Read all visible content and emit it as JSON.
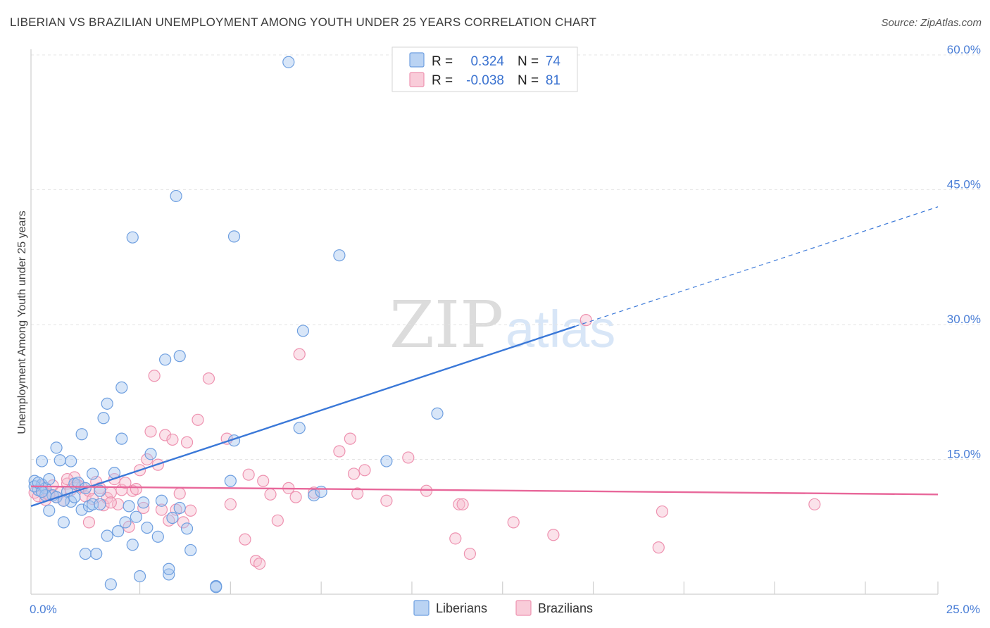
{
  "header": {
    "title": "LIBERIAN VS BRAZILIAN UNEMPLOYMENT AMONG YOUTH UNDER 25 YEARS CORRELATION CHART",
    "source": "Source: ZipAtlas.com"
  },
  "watermark": {
    "zip": "ZIP",
    "atlas": "atlas"
  },
  "chart_data": {
    "type": "scatter",
    "title": "LIBERIAN VS BRAZILIAN UNEMPLOYMENT AMONG YOUTH UNDER 25 YEARS CORRELATION CHART",
    "xlabel": "",
    "ylabel": "Unemployment Among Youth under 25 years",
    "xlim": [
      0,
      25
    ],
    "ylim": [
      0,
      60
    ],
    "x_tick_labels": [
      "0.0%",
      "25.0%"
    ],
    "y_ticks": [
      15,
      30,
      45,
      60
    ],
    "y_tick_labels": [
      "15.0%",
      "30.0%",
      "45.0%",
      "60.0%"
    ],
    "legend": {
      "r_label": "R =",
      "n_label": "N =",
      "entries": [
        {
          "name": "Liberians",
          "r": "0.324",
          "n": "74"
        },
        {
          "name": "Brazilians",
          "r": "-0.038",
          "n": "81"
        }
      ]
    },
    "colors": {
      "liberians_fill": "#a9c8f0",
      "liberians_stroke": "#6e9fe0",
      "liberians_line": "#3a78d8",
      "brazilians_fill": "#f7bfd0",
      "brazilians_stroke": "#ee92b0",
      "brazilians_line": "#e8679a"
    },
    "series": [
      {
        "name": "Liberians",
        "trend": {
          "x0": 0,
          "y0": 9.8,
          "x1": 15,
          "y1": 29.8,
          "dash_to_x": 25,
          "dash_to_y": 43.1
        },
        "points": [
          [
            0.1,
            12.6
          ],
          [
            0.2,
            11.6
          ],
          [
            0.3,
            12.2
          ],
          [
            0.3,
            14.8
          ],
          [
            0.4,
            11.8
          ],
          [
            0.5,
            9.3
          ],
          [
            0.5,
            12.8
          ],
          [
            0.6,
            11.0
          ],
          [
            0.7,
            10.8
          ],
          [
            0.7,
            16.3
          ],
          [
            0.8,
            14.9
          ],
          [
            0.9,
            8.0
          ],
          [
            1.0,
            11.4
          ],
          [
            1.1,
            10.3
          ],
          [
            1.1,
            14.8
          ],
          [
            1.2,
            12.3
          ],
          [
            1.3,
            12.4
          ],
          [
            1.4,
            9.4
          ],
          [
            1.4,
            17.8
          ],
          [
            1.5,
            11.8
          ],
          [
            1.5,
            4.5
          ],
          [
            1.6,
            9.8
          ],
          [
            1.7,
            10.0
          ],
          [
            1.7,
            13.4
          ],
          [
            1.8,
            4.5
          ],
          [
            1.9,
            10.0
          ],
          [
            1.9,
            11.5
          ],
          [
            2.0,
            19.6
          ],
          [
            2.1,
            6.5
          ],
          [
            2.1,
            21.2
          ],
          [
            2.2,
            1.1
          ],
          [
            2.3,
            13.5
          ],
          [
            2.4,
            7.0
          ],
          [
            2.5,
            23.0
          ],
          [
            2.5,
            17.3
          ],
          [
            2.6,
            8.0
          ],
          [
            2.7,
            9.8
          ],
          [
            2.8,
            5.5
          ],
          [
            2.8,
            39.7
          ],
          [
            2.9,
            8.6
          ],
          [
            3.0,
            2.0
          ],
          [
            3.1,
            10.2
          ],
          [
            3.2,
            7.4
          ],
          [
            3.3,
            15.6
          ],
          [
            3.5,
            6.4
          ],
          [
            3.6,
            10.4
          ],
          [
            3.7,
            26.1
          ],
          [
            3.8,
            2.2
          ],
          [
            3.8,
            2.8
          ],
          [
            3.9,
            8.5
          ],
          [
            4.0,
            44.3
          ],
          [
            4.1,
            26.5
          ],
          [
            4.1,
            9.6
          ],
          [
            4.3,
            7.3
          ],
          [
            4.4,
            4.9
          ],
          [
            5.1,
            0.9
          ],
          [
            5.1,
            0.8
          ],
          [
            5.5,
            12.6
          ],
          [
            5.6,
            39.8
          ],
          [
            5.6,
            17.1
          ],
          [
            7.1,
            59.2
          ],
          [
            7.4,
            18.5
          ],
          [
            7.5,
            29.3
          ],
          [
            7.8,
            11.0
          ],
          [
            8.0,
            11.4
          ],
          [
            8.5,
            37.7
          ],
          [
            9.8,
            14.8
          ],
          [
            11.2,
            20.1
          ],
          [
            0.4,
            11.0
          ],
          [
            0.9,
            10.4
          ],
          [
            1.2,
            10.8
          ],
          [
            0.1,
            12.0
          ],
          [
            0.2,
            12.4
          ],
          [
            0.3,
            11.4
          ]
        ]
      },
      {
        "name": "Brazilians",
        "trend": {
          "x0": 0,
          "y0": 12.0,
          "x1": 25,
          "y1": 11.1
        },
        "points": [
          [
            0.1,
            11.3
          ],
          [
            0.2,
            10.9
          ],
          [
            0.3,
            12.0
          ],
          [
            0.4,
            10.5
          ],
          [
            0.5,
            11.0
          ],
          [
            0.6,
            12.1
          ],
          [
            0.7,
            10.8
          ],
          [
            0.8,
            11.3
          ],
          [
            0.9,
            10.4
          ],
          [
            1.0,
            12.3
          ],
          [
            1.1,
            11.6
          ],
          [
            1.2,
            13.0
          ],
          [
            1.3,
            12.1
          ],
          [
            1.4,
            11.9
          ],
          [
            1.5,
            10.9
          ],
          [
            1.6,
            11.5
          ],
          [
            1.6,
            8.0
          ],
          [
            1.7,
            10.6
          ],
          [
            1.8,
            12.5
          ],
          [
            1.9,
            11.8
          ],
          [
            2.0,
            9.9
          ],
          [
            2.1,
            10.7
          ],
          [
            2.2,
            11.3
          ],
          [
            2.3,
            12.8
          ],
          [
            2.4,
            10.0
          ],
          [
            2.5,
            11.6
          ],
          [
            2.6,
            12.4
          ],
          [
            2.7,
            7.5
          ],
          [
            2.8,
            11.5
          ],
          [
            2.9,
            11.7
          ],
          [
            3.0,
            13.8
          ],
          [
            3.1,
            9.6
          ],
          [
            3.2,
            15.0
          ],
          [
            3.3,
            18.1
          ],
          [
            3.4,
            24.3
          ],
          [
            3.5,
            14.4
          ],
          [
            3.6,
            9.4
          ],
          [
            3.7,
            17.7
          ],
          [
            3.8,
            8.2
          ],
          [
            3.9,
            17.2
          ],
          [
            4.0,
            9.4
          ],
          [
            4.1,
            11.2
          ],
          [
            4.2,
            8.0
          ],
          [
            4.3,
            16.9
          ],
          [
            4.4,
            9.3
          ],
          [
            4.6,
            19.4
          ],
          [
            4.9,
            24.0
          ],
          [
            5.4,
            17.3
          ],
          [
            5.5,
            10.0
          ],
          [
            5.9,
            6.1
          ],
          [
            6.0,
            13.3
          ],
          [
            6.2,
            3.7
          ],
          [
            6.3,
            3.4
          ],
          [
            6.4,
            12.6
          ],
          [
            6.6,
            11.1
          ],
          [
            6.8,
            8.2
          ],
          [
            7.1,
            11.8
          ],
          [
            7.3,
            10.8
          ],
          [
            7.4,
            26.7
          ],
          [
            7.8,
            11.3
          ],
          [
            8.5,
            15.9
          ],
          [
            8.8,
            17.3
          ],
          [
            8.9,
            13.4
          ],
          [
            9.0,
            11.2
          ],
          [
            9.2,
            13.8
          ],
          [
            9.8,
            10.4
          ],
          [
            10.4,
            15.2
          ],
          [
            10.9,
            11.5
          ],
          [
            11.7,
            6.2
          ],
          [
            11.8,
            10.0
          ],
          [
            11.9,
            10.0
          ],
          [
            12.1,
            4.5
          ],
          [
            13.3,
            8.0
          ],
          [
            14.4,
            6.6
          ],
          [
            15.3,
            30.5
          ],
          [
            17.3,
            5.2
          ],
          [
            17.4,
            9.2
          ],
          [
            21.6,
            10.0
          ],
          [
            0.5,
            11.1
          ],
          [
            1.0,
            12.8
          ],
          [
            2.2,
            10.2
          ]
        ]
      }
    ]
  }
}
